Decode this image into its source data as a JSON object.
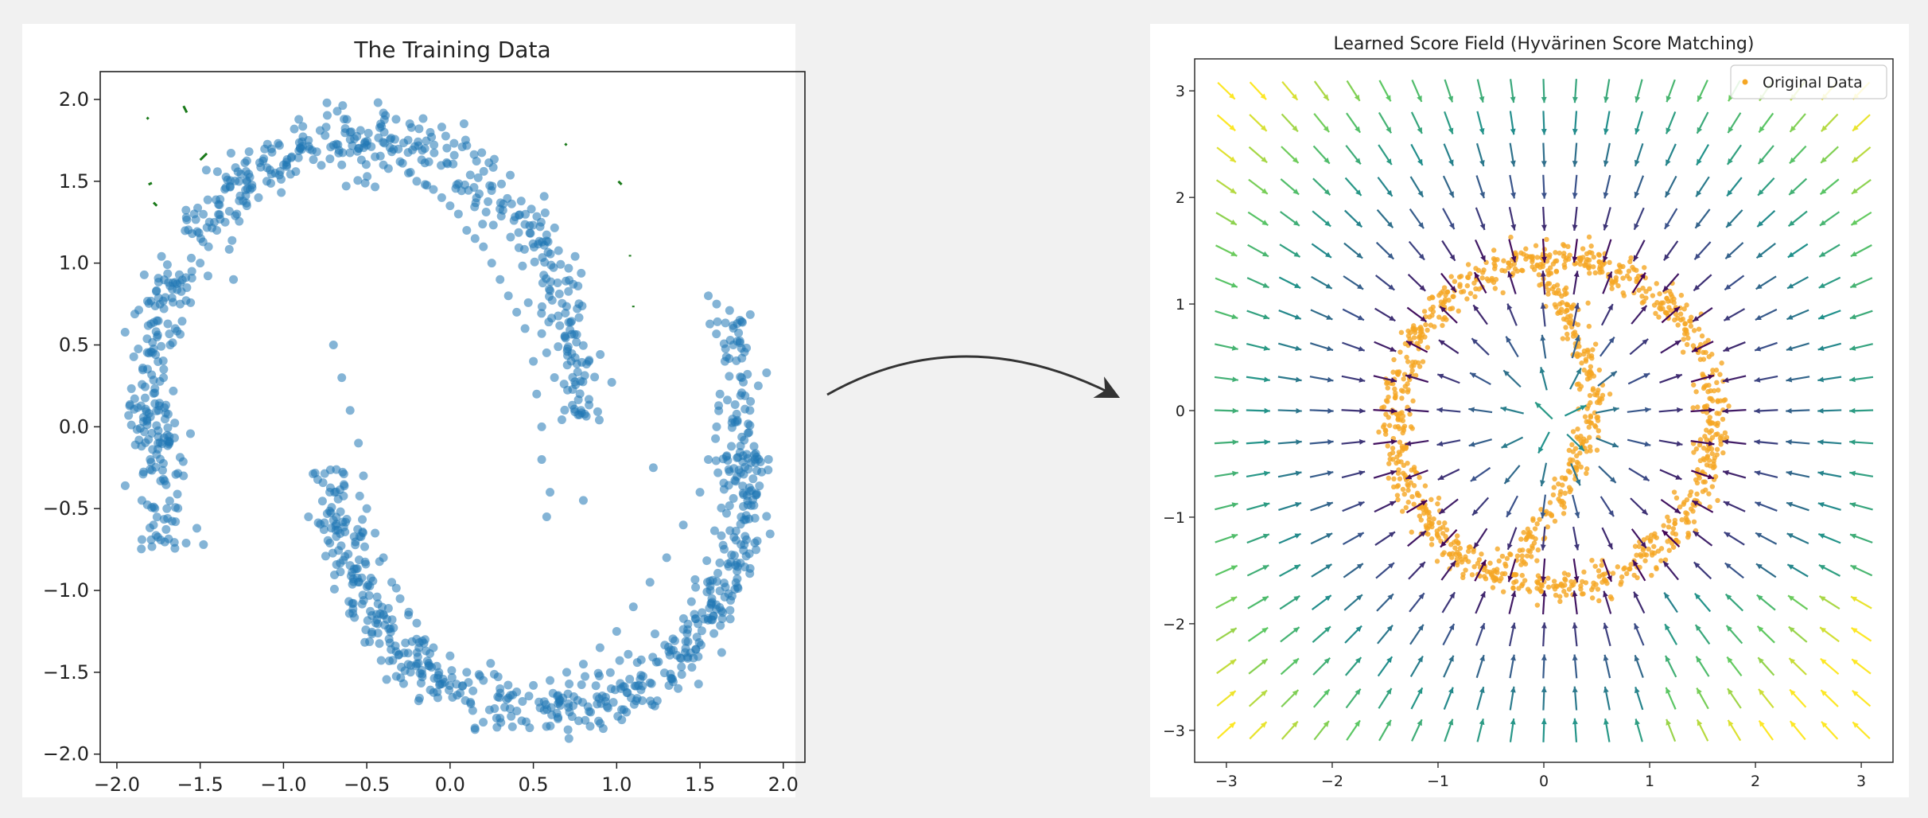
{
  "chart_data": [
    {
      "type": "scatter",
      "title": "The Training Data",
      "xlabel": "",
      "ylabel": "",
      "xlim": [
        -2.1,
        2.13
      ],
      "ylim": [
        -2.05,
        2.17
      ],
      "xticks": [
        -2.0,
        -1.5,
        -1.0,
        -0.5,
        0.0,
        0.5,
        1.0,
        1.5,
        2.0
      ],
      "yticks": [
        -2.0,
        -1.5,
        -1.0,
        -0.5,
        0.0,
        0.5,
        1.0,
        1.5,
        2.0
      ],
      "xtick_labels": [
        "−2.0",
        "−1.5",
        "−1.0",
        "−0.5",
        "0.0",
        "0.5",
        "1.0",
        "1.5",
        "2.0"
      ],
      "ytick_labels": [
        "−2.0",
        "−1.5",
        "−1.0",
        "−0.5",
        "0.0",
        "0.5",
        "1.0",
        "1.5",
        "2.0"
      ],
      "point_color": "#1f77b4",
      "point_alpha": 0.55,
      "grid": false,
      "description_of_shape": "two concentric crescent bands of ~1000 points",
      "points": [
        [
          -1.95,
          -0.36
        ],
        [
          -1.85,
          -0.45
        ],
        [
          -1.8,
          -0.2
        ],
        [
          -1.78,
          -0.6
        ],
        [
          -1.75,
          0.1
        ],
        [
          -1.72,
          0.3
        ],
        [
          -1.7,
          -0.5
        ],
        [
          -1.68,
          0.5
        ],
        [
          -1.65,
          0.6
        ],
        [
          -1.62,
          0.75
        ],
        [
          -1.6,
          -0.3
        ],
        [
          -1.58,
          0.85
        ],
        [
          -1.55,
          0.95
        ],
        [
          -1.52,
          -0.62
        ],
        [
          -1.5,
          1.0
        ],
        [
          -1.48,
          -0.72
        ],
        [
          -1.45,
          1.1
        ],
        [
          -1.4,
          1.2
        ],
        [
          -1.35,
          1.25
        ],
        [
          -1.3,
          0.9
        ],
        [
          -1.28,
          1.3
        ],
        [
          -1.22,
          1.35
        ],
        [
          -1.2,
          1.45
        ],
        [
          -1.15,
          1.4
        ],
        [
          -1.1,
          1.5
        ],
        [
          -1.05,
          1.55
        ],
        [
          -1.0,
          1.6
        ],
        [
          -0.95,
          1.65
        ],
        [
          -0.9,
          1.7
        ],
        [
          -0.85,
          1.75
        ],
        [
          -0.8,
          1.68
        ],
        [
          -0.75,
          1.78
        ],
        [
          -0.7,
          1.72
        ],
        [
          -0.65,
          1.6
        ],
        [
          -0.6,
          1.8
        ],
        [
          -0.55,
          1.7
        ],
        [
          -0.5,
          1.72
        ],
        [
          -0.45,
          1.65
        ],
        [
          -0.4,
          1.6
        ],
        [
          -0.35,
          1.68
        ],
        [
          -0.3,
          1.62
        ],
        [
          -0.25,
          1.55
        ],
        [
          -0.2,
          1.5
        ],
        [
          -0.15,
          1.48
        ],
        [
          -0.1,
          1.45
        ],
        [
          -0.05,
          1.4
        ],
        [
          0.0,
          1.35
        ],
        [
          0.05,
          1.3
        ],
        [
          0.1,
          1.2
        ],
        [
          0.15,
          1.15
        ],
        [
          0.2,
          1.1
        ],
        [
          0.25,
          1.0
        ],
        [
          0.3,
          0.9
        ],
        [
          0.35,
          0.8
        ],
        [
          0.4,
          0.7
        ],
        [
          0.45,
          0.6
        ],
        [
          0.5,
          0.4
        ],
        [
          0.52,
          0.2
        ],
        [
          0.55,
          0.0
        ],
        [
          0.55,
          -0.2
        ],
        [
          0.6,
          -0.4
        ],
        [
          0.58,
          -0.55
        ],
        [
          -0.7,
          0.5
        ],
        [
          -0.65,
          0.3
        ],
        [
          -0.6,
          0.1
        ],
        [
          -0.55,
          -0.1
        ],
        [
          -0.52,
          -0.3
        ],
        [
          -0.5,
          -0.5
        ],
        [
          -0.45,
          -0.65
        ],
        [
          -0.4,
          -0.8
        ],
        [
          -0.35,
          -0.95
        ],
        [
          -0.3,
          -1.05
        ],
        [
          -0.25,
          -1.15
        ],
        [
          -0.2,
          -1.2
        ],
        [
          -0.15,
          -1.3
        ],
        [
          -0.1,
          -1.35
        ],
        [
          0.0,
          -1.4
        ],
        [
          0.1,
          -1.5
        ],
        [
          0.2,
          -1.55
        ],
        [
          0.3,
          -1.6
        ],
        [
          0.4,
          -1.62
        ],
        [
          0.5,
          -1.58
        ],
        [
          0.6,
          -1.55
        ],
        [
          0.7,
          -1.5
        ],
        [
          0.8,
          -1.45
        ],
        [
          0.9,
          -1.35
        ],
        [
          1.0,
          -1.25
        ],
        [
          1.1,
          -1.1
        ],
        [
          1.2,
          -0.95
        ],
        [
          1.3,
          -0.8
        ],
        [
          1.4,
          -0.6
        ],
        [
          1.5,
          -0.4
        ],
        [
          1.55,
          -0.2
        ],
        [
          1.6,
          0.0
        ],
        [
          1.62,
          0.2
        ],
        [
          1.65,
          0.4
        ],
        [
          1.7,
          0.5
        ],
        [
          1.75,
          0.3
        ],
        [
          1.8,
          0.1
        ],
        [
          1.85,
          0.25
        ],
        [
          1.9,
          0.33
        ],
        [
          1.6,
          0.75
        ],
        [
          1.55,
          0.8
        ],
        [
          0.15,
          -1.85
        ],
        [
          0.3,
          -1.78
        ],
        [
          -0.85,
          -0.55
        ],
        [
          1.22,
          -0.25
        ],
        [
          0.8,
          -0.45
        ]
      ]
    },
    {
      "type": "quiver",
      "title": "Learned Score Field (Hyvärinen Score Matching)",
      "xlabel": "",
      "ylabel": "",
      "xlim": [
        -3.3,
        3.3
      ],
      "ylim": [
        -3.3,
        3.3
      ],
      "xticks": [
        -3,
        -2,
        -1,
        0,
        1,
        2,
        3
      ],
      "yticks": [
        -3,
        -2,
        -1,
        0,
        1,
        2,
        3
      ],
      "xtick_labels": [
        "−3",
        "−2",
        "−1",
        "0",
        "1",
        "2",
        "3"
      ],
      "ytick_labels": [
        "−3",
        "−2",
        "−1",
        "0",
        "1",
        "2",
        "3"
      ],
      "grid_n": 21,
      "grid_range": [
        -3,
        3
      ],
      "field_description": "vectors point toward the ring-shaped data manifold; magnitude increases with distance (viridis colormap)",
      "colormap": [
        "#440154",
        "#3b528b",
        "#21918c",
        "#5ec962",
        "#fde725"
      ],
      "legend": {
        "position": "top-right",
        "entries": [
          {
            "label": "Original Data",
            "color": "#f5a623"
          }
        ]
      },
      "scatter_color": "#f5a623",
      "ring": {
        "cx": 0.1,
        "cy": -0.1,
        "rx": 1.5,
        "ry": 1.55
      }
    }
  ],
  "stray_marks_color": "#1a7a1a"
}
